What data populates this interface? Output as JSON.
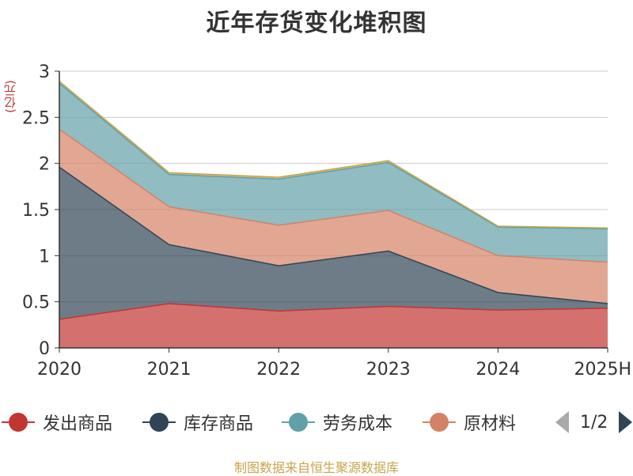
{
  "chart_data": {
    "type": "area",
    "title": "近年存货变化堆积图",
    "ylabel": "(亿元)",
    "xlabel": "",
    "categories": [
      "2020",
      "2021",
      "2022",
      "2023",
      "2024",
      "2025H"
    ],
    "ylim": [
      0,
      3
    ],
    "yticks": [
      "0",
      "0.5",
      "1",
      "1.5",
      "2",
      "2.5",
      "3"
    ],
    "stacked": true,
    "grid": true,
    "legend_position": "bottom",
    "series": [
      {
        "name": "发出商品",
        "color": "#c23531",
        "values": [
          0.31,
          0.48,
          0.4,
          0.45,
          0.41,
          0.43
        ]
      },
      {
        "name": "库存商品",
        "color": "#2f4554",
        "values": [
          1.65,
          0.64,
          0.49,
          0.6,
          0.19,
          0.05
        ]
      },
      {
        "name": "原材料",
        "color": "#d48265",
        "values": [
          0.41,
          0.41,
          0.44,
          0.44,
          0.4,
          0.45
        ]
      },
      {
        "name": "劳务成本",
        "color": "#61a0a8",
        "values": [
          0.5,
          0.35,
          0.5,
          0.52,
          0.31,
          0.36
        ]
      },
      {
        "color": "#c8a44a",
        "values": [
          0.02,
          0.02,
          0.02,
          0.02,
          0.01,
          0.01
        ]
      }
    ]
  },
  "legend": {
    "items": [
      {
        "label": "发出商品",
        "color": "#c23531"
      },
      {
        "label": "库存商品",
        "color": "#2f4554"
      },
      {
        "label": "劳务成本",
        "color": "#61a0a8"
      },
      {
        "label": "原材料",
        "color": "#d48265"
      }
    ],
    "page": "1/2"
  },
  "source": "制图数据来自恒生聚源数据库"
}
